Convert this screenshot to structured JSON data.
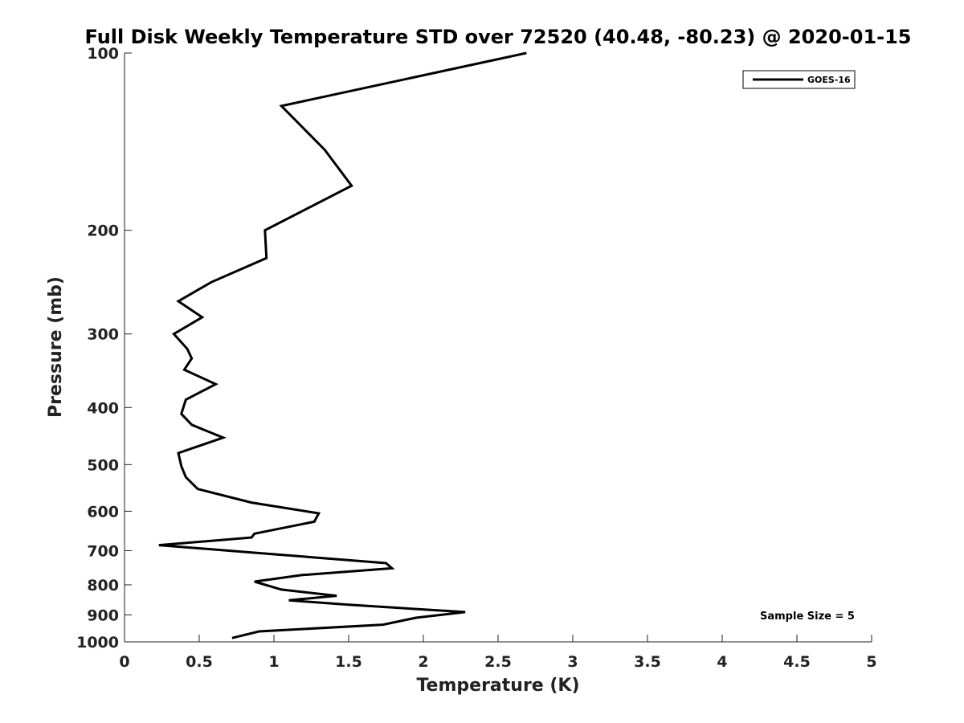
{
  "chart_data": {
    "type": "line",
    "title": "Full Disk Weekly Temperature STD over 72520 (40.48, -80.23) @ 2020-01-15",
    "xlabel": "Temperature (K)",
    "ylabel": "Pressure (mb)",
    "xlim": [
      0,
      5
    ],
    "ylim": [
      100,
      1000
    ],
    "y_scale": "log",
    "y_reversed": true,
    "x_ticks": [
      0,
      0.5,
      1,
      1.5,
      2,
      2.5,
      3,
      3.5,
      4,
      4.5,
      5
    ],
    "x_tick_labels": [
      "0",
      "0.5",
      "1",
      "1.5",
      "2",
      "2.5",
      "3",
      "3.5",
      "4",
      "4.5",
      "5"
    ],
    "y_ticks": [
      100,
      200,
      300,
      400,
      500,
      600,
      700,
      800,
      900,
      1000
    ],
    "y_tick_labels": [
      "100",
      "200",
      "300",
      "400",
      "500",
      "600",
      "700",
      "800",
      "900",
      "1000"
    ],
    "grid": false,
    "legend_position": "top-right",
    "series": [
      {
        "name": "GOES-16",
        "color": "#000000",
        "x": [
          2.69,
          1.05,
          1.34,
          1.52,
          0.94,
          0.95,
          0.58,
          0.36,
          0.52,
          0.33,
          0.42,
          0.45,
          0.4,
          0.61,
          0.41,
          0.38,
          0.45,
          0.66,
          0.36,
          0.38,
          0.41,
          0.49,
          0.85,
          1.3,
          1.27,
          0.87,
          0.85,
          0.23,
          0.85,
          1.75,
          1.79,
          1.19,
          0.87,
          1.05,
          1.42,
          1.1,
          1.5,
          2.28,
          1.95,
          1.73,
          0.9,
          0.72
        ],
        "y": [
          100,
          123,
          146,
          168,
          200,
          223,
          245,
          264,
          281,
          300,
          318,
          330,
          345,
          365,
          388,
          410,
          428,
          450,
          478,
          503,
          525,
          550,
          580,
          605,
          625,
          655,
          665,
          685,
          705,
          735,
          750,
          770,
          790,
          815,
          835,
          850,
          865,
          890,
          910,
          935,
          960,
          985
        ]
      }
    ],
    "annotations": [
      "Sample Size = 5"
    ]
  }
}
